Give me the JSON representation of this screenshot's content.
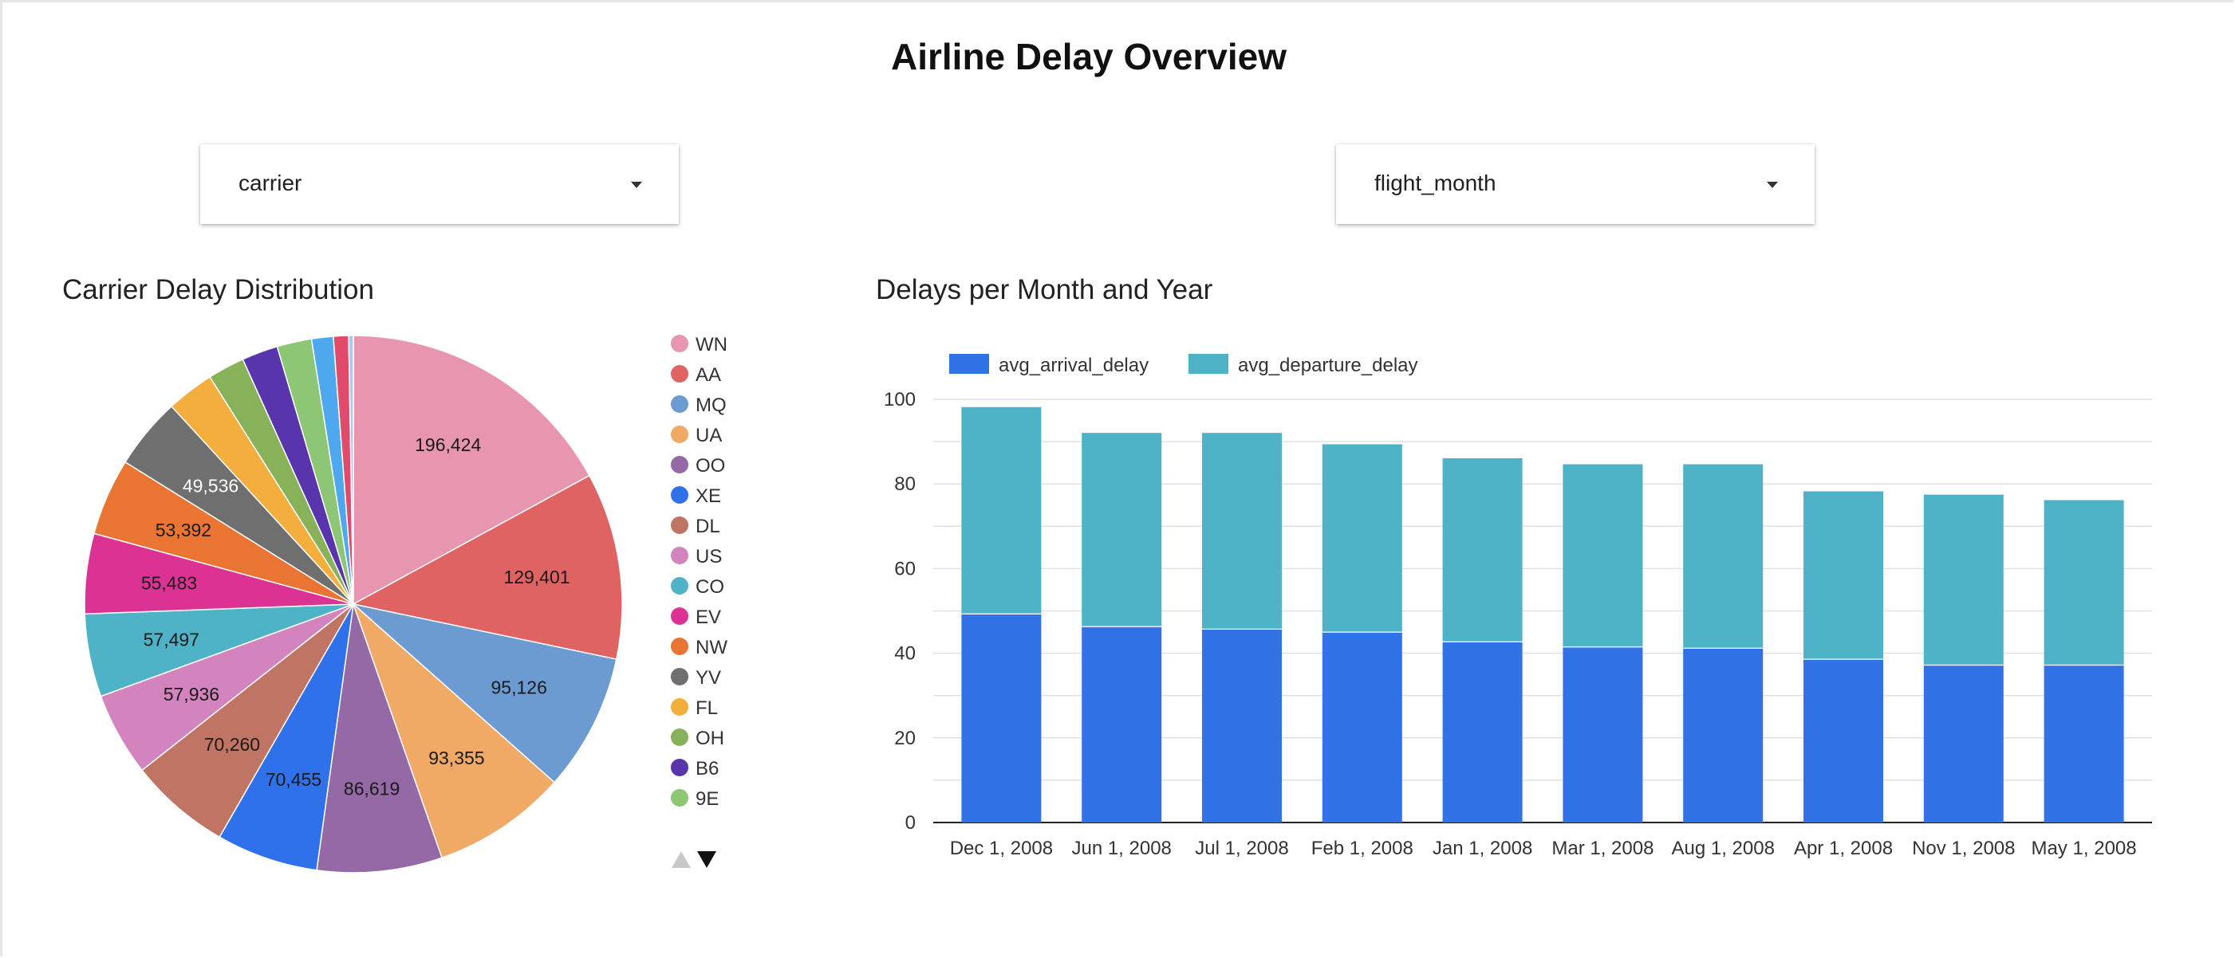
{
  "page": {
    "title": "Airline Delay Overview"
  },
  "controls": {
    "carrier_filter": {
      "label": "carrier"
    },
    "month_filter": {
      "label": "flight_month"
    }
  },
  "colors": {
    "arrival": "#3173e6",
    "departure": "#4fb3c8"
  },
  "chart_data": [
    {
      "type": "pie",
      "title": "Carrier Delay Distribution",
      "legend_position": "right",
      "slices": [
        {
          "label": "WN",
          "value": 196424,
          "display": "196,424",
          "color": "#e895b0",
          "label_color": "#1a1a1a"
        },
        {
          "label": "AA",
          "value": 129401,
          "display": "129,401",
          "color": "#e06363",
          "label_color": "#1a1a1a"
        },
        {
          "label": "MQ",
          "value": 95126,
          "display": "95,126",
          "color": "#6c9bd2",
          "label_color": "#1a1a1a"
        },
        {
          "label": "UA",
          "value": 93355,
          "display": "93,355",
          "color": "#f0aa66",
          "label_color": "#1a1a1a"
        },
        {
          "label": "OO",
          "value": 86619,
          "display": "86,619",
          "color": "#9469a6",
          "label_color": "#1a1a1a"
        },
        {
          "label": "XE",
          "value": 70455,
          "display": "70,455",
          "color": "#2f71ea",
          "label_color": "#1a1a1a"
        },
        {
          "label": "DL",
          "value": 70260,
          "display": "70,260",
          "color": "#c07463",
          "label_color": "#1a1a1a"
        },
        {
          "label": "US",
          "value": 57936,
          "display": "57,936",
          "color": "#d383bd",
          "label_color": "#1a1a1a"
        },
        {
          "label": "CO",
          "value": 57497,
          "display": "57,497",
          "color": "#4fb3c8",
          "label_color": "#1a1a1a"
        },
        {
          "label": "EV",
          "value": 55483,
          "display": "55,483",
          "color": "#dc3293",
          "label_color": "#1a1a1a"
        },
        {
          "label": "NW",
          "value": 53392,
          "display": "53,392",
          "color": "#ea7532",
          "label_color": "#1a1a1a"
        },
        {
          "label": "YV",
          "value": 49536,
          "display": "49,536",
          "color": "#6f6f6f",
          "label_color": "#ffffff"
        },
        {
          "label": "FL",
          "value": 33000,
          "display": "",
          "color": "#f4ae3d",
          "label_color": "#1a1a1a"
        },
        {
          "label": "OH",
          "value": 25500,
          "display": "",
          "color": "#87b25a",
          "label_color": "#1a1a1a"
        },
        {
          "label": "B6",
          "value": 25000,
          "display": "",
          "color": "#5835ac",
          "label_color": "#ffffff"
        },
        {
          "label": "9E",
          "value": 24000,
          "display": "",
          "color": "#8dc674",
          "label_color": "#1a1a1a"
        },
        {
          "label": "",
          "value": 15000,
          "display": "",
          "color": "#4ea8ee",
          "label_color": "#1a1a1a"
        },
        {
          "label": "",
          "value": 10500,
          "display": "",
          "color": "#e24a6b",
          "label_color": "#1a1a1a"
        },
        {
          "label": "",
          "value": 3200,
          "display": "",
          "color": "#a7cbea",
          "label_color": "#1a1a1a"
        }
      ],
      "legend_pager": {
        "up": "▲",
        "down": "▼"
      }
    },
    {
      "type": "bar",
      "stacked": true,
      "title": "Delays per Month and Year",
      "categories": [
        "Dec 1, 2008",
        "Jun 1, 2008",
        "Jul 1, 2008",
        "Feb 1, 2008",
        "Jan 1, 2008",
        "Mar 1, 2008",
        "Aug 1, 2008",
        "Apr 1, 2008",
        "Nov 1, 2008",
        "May 1, 2008"
      ],
      "series": [
        {
          "name": "avg_arrival_delay",
          "values": [
            49.4,
            46.4,
            45.8,
            45.1,
            42.8,
            41.6,
            41.3,
            38.7,
            37.3,
            37.3
          ]
        },
        {
          "name": "avg_departure_delay",
          "values": [
            49.0,
            45.9,
            46.5,
            44.5,
            43.5,
            43.3,
            43.6,
            39.8,
            40.4,
            39.1
          ]
        }
      ],
      "ylim": [
        0,
        100
      ],
      "yticks": [
        0,
        20,
        40,
        60,
        80,
        100
      ],
      "grid": true,
      "legend_position": "top-left"
    }
  ]
}
